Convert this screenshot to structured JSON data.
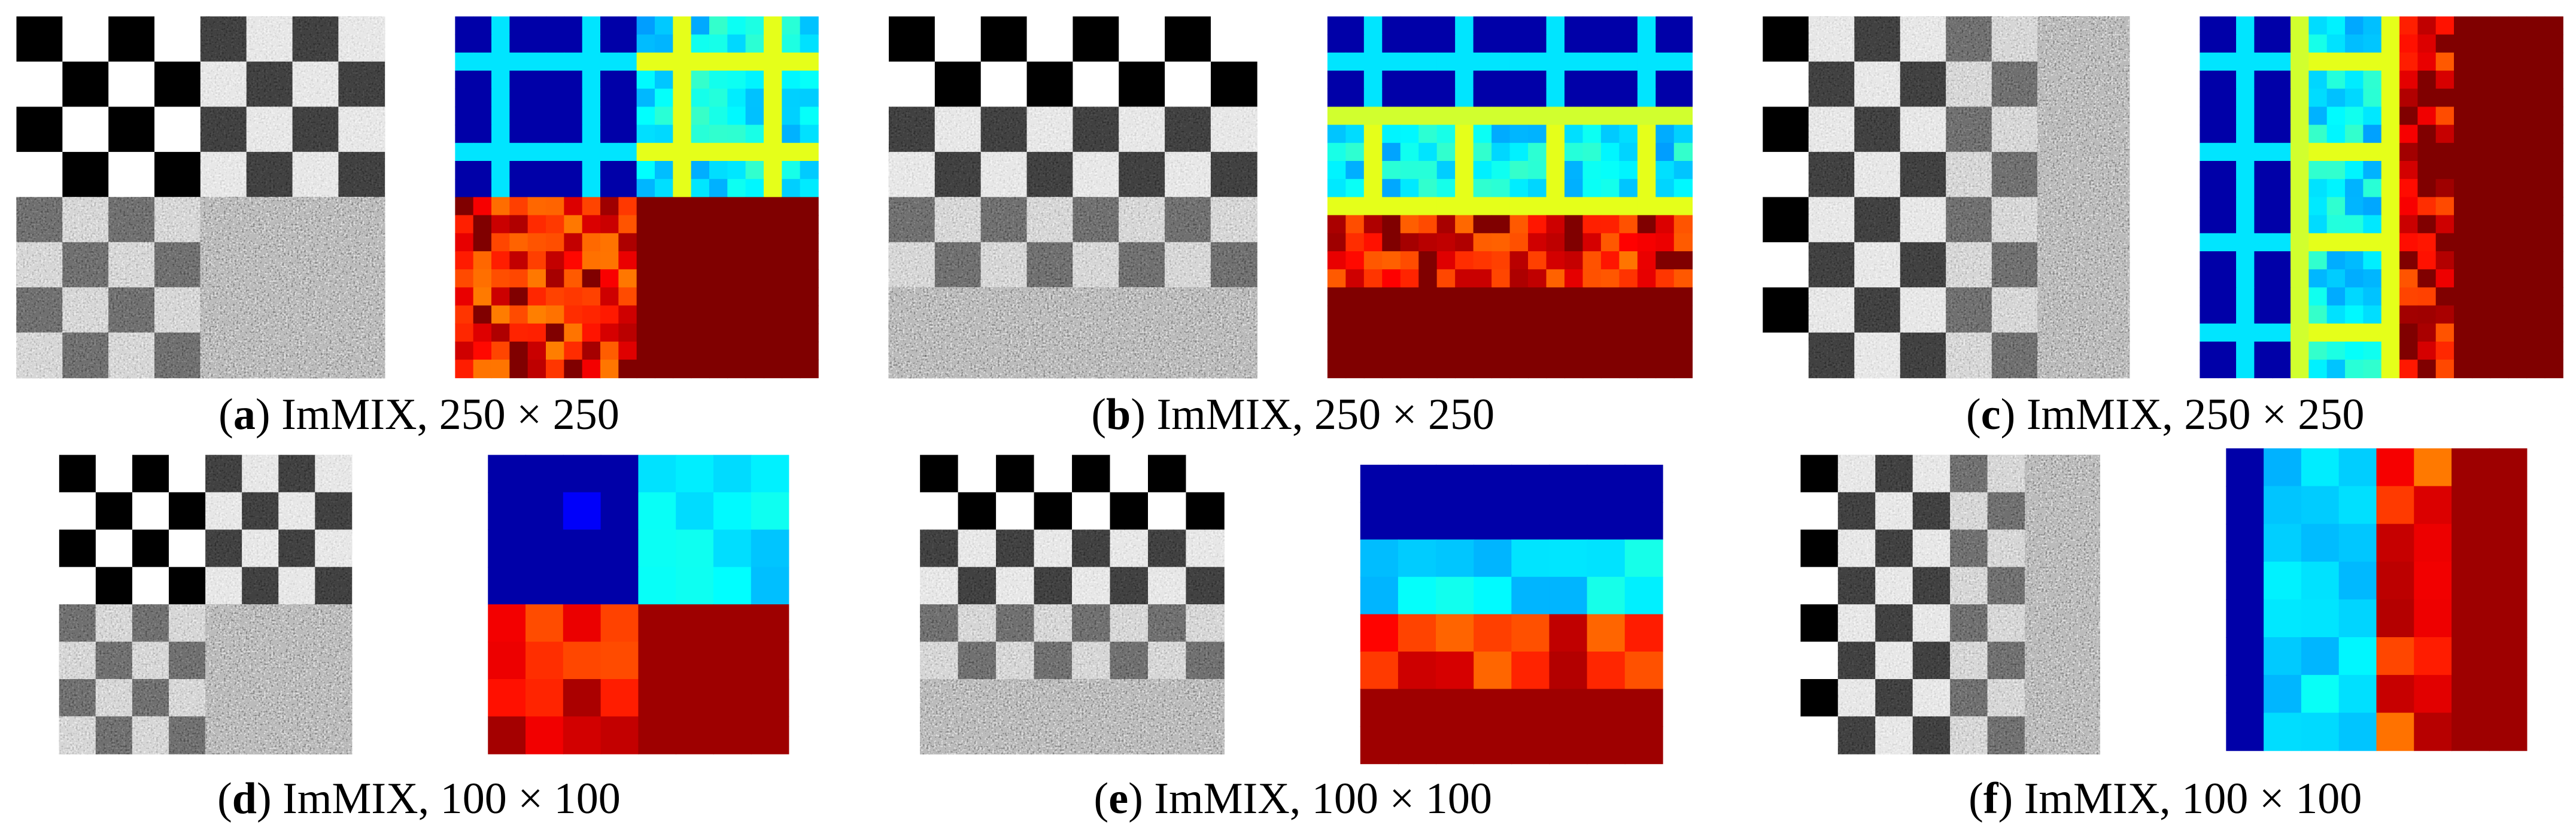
{
  "panels": [
    {
      "caption": [
        "(",
        "a",
        ") ImMIX, 250 × 250"
      ]
    },
    {
      "caption": [
        "(",
        "b",
        ") ImMIX, 250 × 250"
      ]
    },
    {
      "caption": [
        "(",
        "c",
        ") ImMIX, 250 × 250"
      ]
    },
    {
      "caption": [
        "(",
        "d",
        ") ImMIX, 100 × 100"
      ]
    },
    {
      "caption": [
        "(",
        "e",
        ") ImMIX, 100 × 100"
      ]
    },
    {
      "caption": [
        "(",
        "f",
        ") ImMIX, 100 × 100"
      ]
    }
  ]
}
